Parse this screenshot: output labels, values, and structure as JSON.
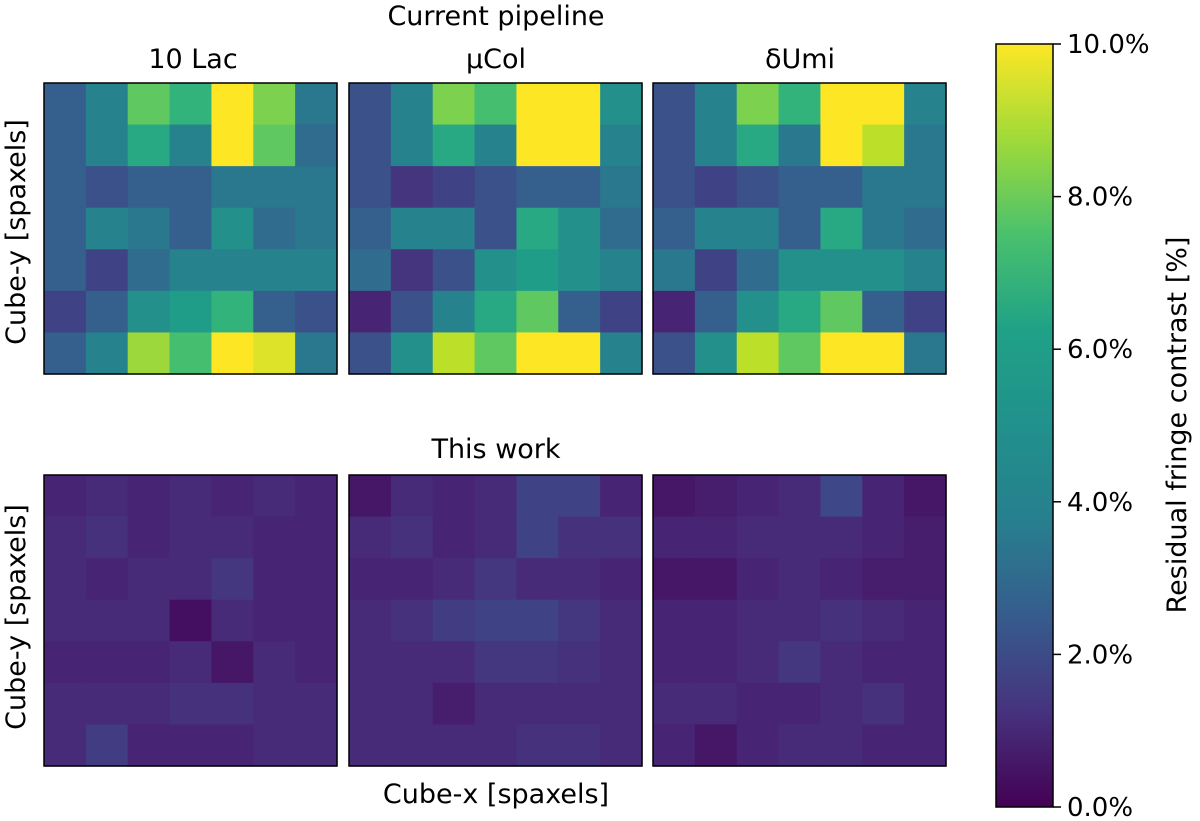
{
  "chart_data": {
    "type": "heatmap",
    "suptitle_top": "Current pipeline",
    "suptitle_bottom": "This work",
    "column_titles": [
      "10 Lac",
      "μCol",
      "δUmi"
    ],
    "ylabel": "Cube-y [spaxels]",
    "xlabel": "Cube-x [spaxels]",
    "colorbar": {
      "label": "Residual fringe contrast [%]",
      "vmin": 0,
      "vmax": 10,
      "colormap": "viridis",
      "ticks": [
        0,
        2,
        4,
        6,
        8,
        10
      ],
      "tick_labels": [
        "0.0%",
        "2.0%",
        "4.0%",
        "6.0%",
        "8.0%",
        "10.0%"
      ]
    },
    "panels": [
      {
        "row": "Current pipeline",
        "title": "10 Lac",
        "values": [
          [
            3.0,
            4.5,
            7.5,
            6.5,
            10.0,
            8.0,
            4.0
          ],
          [
            3.0,
            4.5,
            6.0,
            4.5,
            10.0,
            7.5,
            3.5
          ],
          [
            3.0,
            2.5,
            3.0,
            3.0,
            4.0,
            4.0,
            4.0
          ],
          [
            3.0,
            4.5,
            4.0,
            3.0,
            5.0,
            3.5,
            4.0
          ],
          [
            3.0,
            2.0,
            3.5,
            4.5,
            4.5,
            4.5,
            4.5
          ],
          [
            2.0,
            3.0,
            5.0,
            5.5,
            6.5,
            3.0,
            2.5
          ],
          [
            3.0,
            4.5,
            8.5,
            7.0,
            10.0,
            9.5,
            4.0
          ]
        ]
      },
      {
        "row": "Current pipeline",
        "title": "μCol",
        "values": [
          [
            2.5,
            4.5,
            8.0,
            7.0,
            10.0,
            10.0,
            5.0
          ],
          [
            2.5,
            4.5,
            6.0,
            4.5,
            10.0,
            10.0,
            4.5
          ],
          [
            2.5,
            1.5,
            2.0,
            2.5,
            3.0,
            3.0,
            4.0
          ],
          [
            3.0,
            4.5,
            4.5,
            2.5,
            6.0,
            5.0,
            3.5
          ],
          [
            3.5,
            1.5,
            2.5,
            5.0,
            5.5,
            5.0,
            4.5
          ],
          [
            1.0,
            2.5,
            4.5,
            6.0,
            7.5,
            3.0,
            2.0
          ],
          [
            2.5,
            5.0,
            9.0,
            7.5,
            10.0,
            10.0,
            4.5
          ]
        ]
      },
      {
        "row": "Current pipeline",
        "title": "δUmi",
        "values": [
          [
            2.5,
            4.5,
            8.0,
            6.5,
            10.0,
            10.0,
            4.5
          ],
          [
            2.5,
            4.5,
            6.0,
            4.0,
            10.0,
            9.0,
            4.0
          ],
          [
            2.5,
            2.0,
            2.5,
            3.0,
            3.0,
            4.0,
            4.0
          ],
          [
            3.0,
            4.5,
            4.5,
            3.0,
            6.0,
            4.0,
            3.5
          ],
          [
            4.0,
            2.0,
            3.5,
            5.0,
            5.0,
            5.0,
            4.5
          ],
          [
            1.0,
            3.0,
            5.0,
            6.0,
            7.5,
            3.0,
            2.0
          ],
          [
            2.5,
            5.0,
            9.0,
            7.5,
            10.0,
            10.0,
            4.0
          ]
        ]
      },
      {
        "row": "This work",
        "title": "10 Lac",
        "values": [
          [
            1.0,
            1.2,
            1.0,
            1.2,
            1.0,
            1.2,
            1.0
          ],
          [
            1.2,
            1.4,
            1.0,
            1.2,
            1.2,
            1.0,
            1.0
          ],
          [
            1.2,
            1.0,
            1.2,
            1.2,
            1.6,
            1.0,
            1.0
          ],
          [
            1.2,
            1.2,
            1.2,
            0.4,
            1.2,
            1.0,
            1.0
          ],
          [
            1.0,
            1.0,
            1.0,
            1.2,
            0.6,
            1.2,
            1.0
          ],
          [
            1.2,
            1.2,
            1.2,
            1.4,
            1.4,
            1.2,
            1.2
          ],
          [
            1.2,
            1.8,
            1.0,
            1.0,
            1.0,
            1.2,
            1.2
          ]
        ]
      },
      {
        "row": "This work",
        "title": "μCol",
        "values": [
          [
            0.6,
            1.2,
            1.0,
            1.2,
            2.0,
            2.0,
            1.0
          ],
          [
            1.2,
            1.4,
            1.0,
            1.2,
            2.0,
            1.4,
            1.4
          ],
          [
            1.0,
            1.0,
            1.2,
            1.6,
            1.2,
            1.2,
            1.0
          ],
          [
            1.2,
            1.4,
            1.8,
            2.0,
            2.0,
            1.6,
            1.2
          ],
          [
            1.2,
            1.2,
            1.2,
            1.6,
            1.6,
            1.4,
            1.2
          ],
          [
            1.2,
            1.2,
            0.8,
            1.2,
            1.2,
            1.2,
            1.2
          ],
          [
            1.2,
            1.2,
            1.2,
            1.2,
            1.4,
            1.4,
            1.2
          ]
        ]
      },
      {
        "row": "This work",
        "title": "δUmi",
        "values": [
          [
            0.6,
            0.8,
            1.0,
            1.2,
            2.2,
            1.0,
            0.6
          ],
          [
            1.0,
            1.0,
            1.2,
            1.2,
            1.2,
            1.0,
            0.8
          ],
          [
            0.6,
            0.6,
            1.0,
            1.2,
            1.0,
            0.8,
            0.8
          ],
          [
            1.0,
            1.0,
            1.2,
            1.2,
            1.4,
            1.2,
            1.0
          ],
          [
            1.0,
            1.0,
            1.2,
            1.6,
            1.2,
            1.0,
            1.0
          ],
          [
            1.2,
            1.2,
            1.0,
            1.0,
            1.2,
            1.4,
            1.0
          ],
          [
            1.0,
            0.6,
            1.0,
            1.2,
            1.2,
            1.0,
            1.0
          ]
        ]
      }
    ]
  }
}
